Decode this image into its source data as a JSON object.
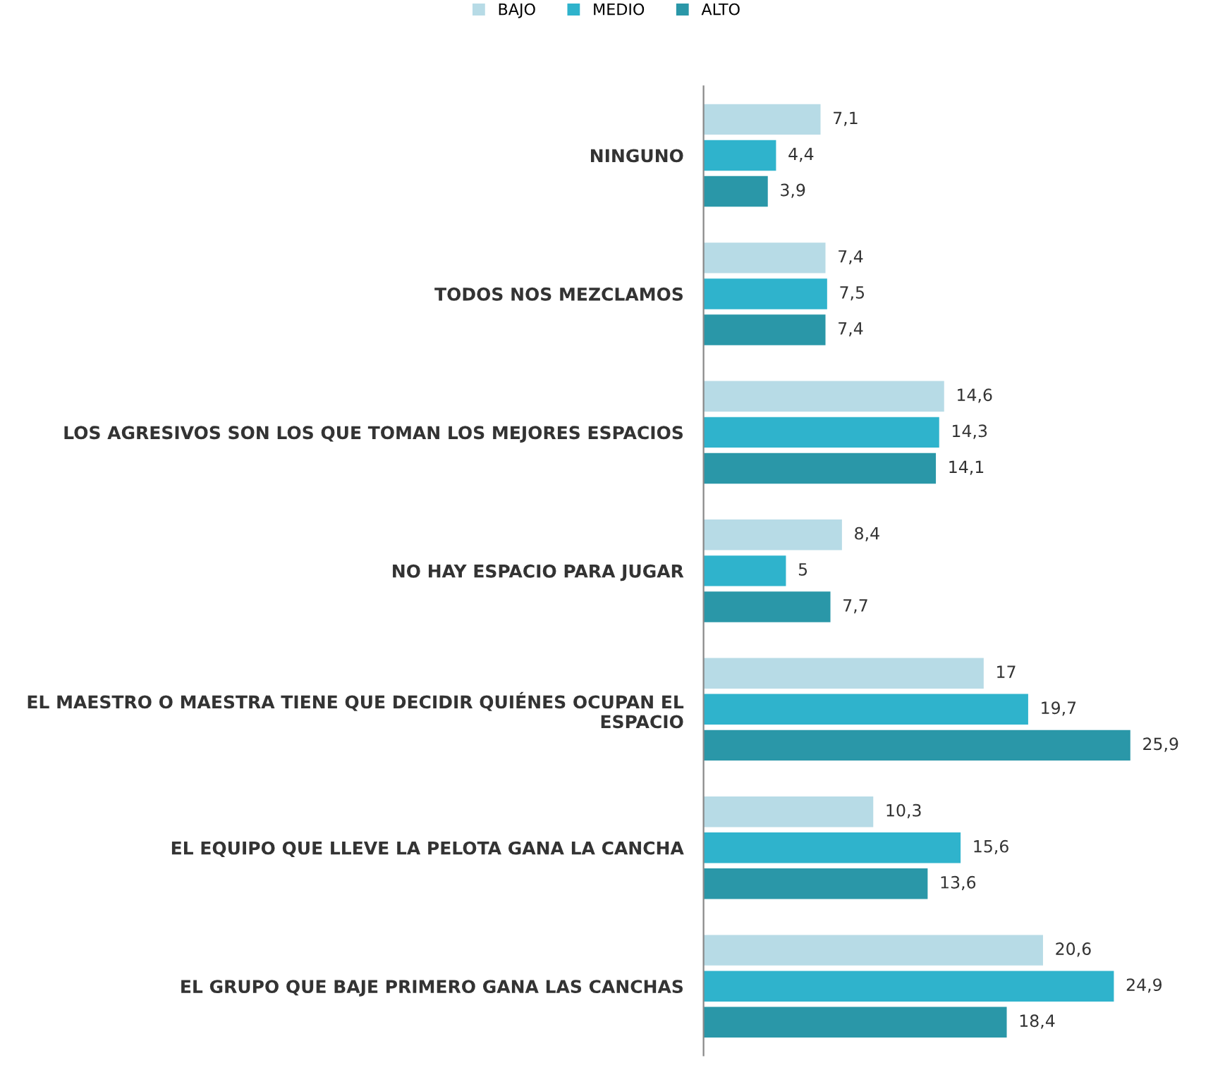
{
  "chart_data": {
    "type": "bar",
    "orientation": "horizontal",
    "legend": "top",
    "categories": [
      "NINGUNO",
      "TODOS NOS MEZCLAMOS",
      "LOS AGRESIVOS SON LOS QUE TOMAN LOS MEJORES ESPACIOS",
      "NO HAY ESPACIO PARA JUGAR",
      "EL MAESTRO O MAESTRA TIENE QUE DECIDIR QUIÉNES OCUPAN EL\nESPACIO",
      "EL EQUIPO QUE LLEVE LA PELOTA GANA LA CANCHA",
      "EL GRUPO QUE BAJE PRIMERO GANA LAS CANCHAS"
    ],
    "series": [
      {
        "name": "BAJO",
        "color": "#b7dbe6",
        "values": [
          7.1,
          7.4,
          14.6,
          8.4,
          17,
          10.3,
          20.6
        ],
        "value_labels": [
          "7,1",
          "7,4",
          "14,6",
          "8,4",
          "17",
          "10,3",
          "20,6"
        ]
      },
      {
        "name": "MEDIO",
        "color": "#2fb3cc",
        "values": [
          4.4,
          7.5,
          14.3,
          5,
          19.7,
          15.6,
          24.9
        ],
        "value_labels": [
          "4,4",
          "7,5",
          "14,3",
          "5",
          "19,7",
          "15,6",
          "24,9"
        ]
      },
      {
        "name": "ALTO",
        "color": "#2a97a8",
        "values": [
          3.9,
          7.4,
          14.1,
          7.7,
          25.9,
          13.6,
          18.4
        ],
        "value_labels": [
          "3,9",
          "7,4",
          "14,1",
          "7,7",
          "25,9",
          "13,6",
          "18,4"
        ]
      }
    ]
  }
}
